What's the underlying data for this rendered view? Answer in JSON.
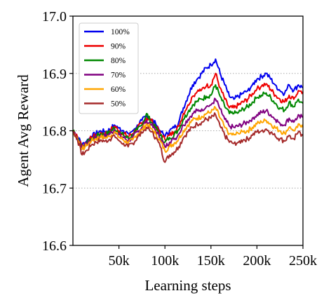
{
  "chart_data": {
    "type": "line",
    "title": "",
    "xlabel": "Learning steps",
    "ylabel": "Agent Avg Reward",
    "xlim": [
      0,
      250000
    ],
    "ylim": [
      16.6,
      17.0
    ],
    "x_ticks": [
      50000,
      100000,
      150000,
      200000,
      250000
    ],
    "x_tick_labels": [
      "50k",
      "100k",
      "150k",
      "200k",
      "250k"
    ],
    "y_ticks": [
      16.6,
      16.7,
      16.8,
      16.9,
      17.0
    ],
    "y_tick_labels": [
      "16.6",
      "16.7",
      "16.8",
      "16.9",
      "17.0"
    ],
    "grid": "horizontal dotted at 16.7, 16.8, 16.9",
    "legend_position": "top-left",
    "x": [
      0,
      5000,
      10000,
      15000,
      20000,
      25000,
      30000,
      35000,
      40000,
      45000,
      50000,
      55000,
      60000,
      65000,
      70000,
      75000,
      80000,
      85000,
      90000,
      95000,
      100000,
      105000,
      110000,
      115000,
      120000,
      125000,
      130000,
      135000,
      140000,
      145000,
      150000,
      155000,
      160000,
      165000,
      170000,
      175000,
      180000,
      185000,
      190000,
      195000,
      200000,
      205000,
      210000,
      215000,
      220000,
      225000,
      230000,
      235000,
      240000,
      245000,
      250000
    ],
    "series": [
      {
        "name": "100%",
        "color": "#0000ee",
        "values": [
          16.8,
          16.79,
          16.775,
          16.782,
          16.79,
          16.795,
          16.8,
          16.798,
          16.802,
          16.81,
          16.805,
          16.8,
          16.795,
          16.8,
          16.81,
          16.818,
          16.826,
          16.82,
          16.812,
          16.8,
          16.79,
          16.8,
          16.805,
          16.815,
          16.84,
          16.86,
          16.88,
          16.89,
          16.9,
          16.91,
          16.915,
          16.925,
          16.9,
          16.88,
          16.86,
          16.855,
          16.86,
          16.865,
          16.87,
          16.88,
          16.89,
          16.895,
          16.9,
          16.89,
          16.88,
          16.87,
          16.865,
          16.88,
          16.87,
          16.88,
          16.875
        ]
      },
      {
        "name": "90%",
        "color": "#ee0000",
        "values": [
          16.8,
          16.788,
          16.773,
          16.78,
          16.788,
          16.792,
          16.797,
          16.795,
          16.8,
          16.808,
          16.8,
          16.795,
          16.79,
          16.795,
          16.805,
          16.812,
          16.822,
          16.818,
          16.808,
          16.795,
          16.785,
          16.792,
          16.798,
          16.808,
          16.83,
          16.845,
          16.86,
          16.868,
          16.872,
          16.878,
          16.88,
          16.9,
          16.875,
          16.855,
          16.84,
          16.84,
          16.845,
          16.85,
          16.855,
          16.865,
          16.873,
          16.878,
          16.882,
          16.872,
          16.862,
          16.855,
          16.85,
          16.862,
          16.855,
          16.87,
          16.868
        ]
      },
      {
        "name": "80%",
        "color": "#008800",
        "values": [
          16.8,
          16.787,
          16.772,
          16.778,
          16.786,
          16.79,
          16.795,
          16.793,
          16.797,
          16.805,
          16.797,
          16.792,
          16.787,
          16.792,
          16.802,
          16.81,
          16.83,
          16.815,
          16.805,
          16.792,
          16.78,
          16.788,
          16.793,
          16.802,
          16.82,
          16.832,
          16.845,
          16.852,
          16.855,
          16.86,
          16.862,
          16.88,
          16.86,
          16.842,
          16.83,
          16.83,
          16.832,
          16.838,
          16.842,
          16.85,
          16.858,
          16.862,
          16.866,
          16.858,
          16.848,
          16.84,
          16.836,
          16.85,
          16.842,
          16.855,
          16.848
        ]
      },
      {
        "name": "70%",
        "color": "#800080",
        "values": [
          16.8,
          16.786,
          16.77,
          16.776,
          16.784,
          16.788,
          16.792,
          16.79,
          16.794,
          16.802,
          16.793,
          16.788,
          16.783,
          16.788,
          16.798,
          16.806,
          16.818,
          16.81,
          16.8,
          16.787,
          16.772,
          16.78,
          16.785,
          16.794,
          16.81,
          16.82,
          16.83,
          16.835,
          16.838,
          16.842,
          16.845,
          16.855,
          16.838,
          16.82,
          16.808,
          16.806,
          16.808,
          16.812,
          16.815,
          16.822,
          16.828,
          16.832,
          16.835,
          16.828,
          16.82,
          16.813,
          16.81,
          16.822,
          16.815,
          16.828,
          16.823
        ]
      },
      {
        "name": "60%",
        "color": "#ffa500",
        "values": [
          16.8,
          16.785,
          16.768,
          16.774,
          16.782,
          16.786,
          16.789,
          16.787,
          16.79,
          16.798,
          16.789,
          16.784,
          16.779,
          16.784,
          16.794,
          16.802,
          16.812,
          16.804,
          16.795,
          16.782,
          16.765,
          16.773,
          16.778,
          16.786,
          16.8,
          16.81,
          16.818,
          16.822,
          16.825,
          16.83,
          16.832,
          16.84,
          16.822,
          16.806,
          16.795,
          16.793,
          16.795,
          16.798,
          16.8,
          16.806,
          16.812,
          16.815,
          16.818,
          16.812,
          16.805,
          16.8,
          16.796,
          16.806,
          16.8,
          16.812,
          16.806
        ]
      },
      {
        "name": "50%",
        "color": "#a52a2a",
        "values": [
          16.8,
          16.784,
          16.758,
          16.766,
          16.775,
          16.78,
          16.784,
          16.782,
          16.785,
          16.792,
          16.783,
          16.778,
          16.772,
          16.778,
          16.788,
          16.796,
          16.806,
          16.798,
          16.788,
          16.772,
          16.745,
          16.758,
          16.763,
          16.772,
          16.788,
          16.798,
          16.806,
          16.812,
          16.815,
          16.82,
          16.822,
          16.828,
          16.808,
          16.792,
          16.78,
          16.778,
          16.78,
          16.784,
          16.786,
          16.792,
          16.798,
          16.8,
          16.803,
          16.797,
          16.79,
          16.786,
          16.782,
          16.792,
          16.786,
          16.798,
          16.792
        ]
      }
    ]
  }
}
